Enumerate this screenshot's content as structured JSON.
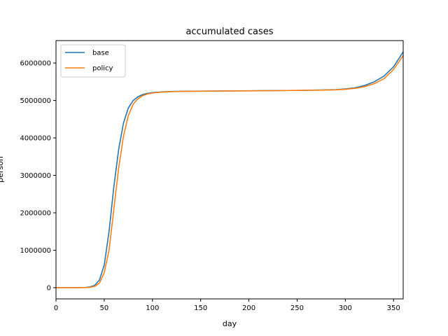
{
  "chart_data": {
    "type": "line",
    "title": "accumulated cases",
    "xlabel": "day",
    "ylabel": "person",
    "xlim": [
      0,
      360
    ],
    "ylim": [
      -300000,
      6600000
    ],
    "xticks": [
      0,
      50,
      100,
      150,
      200,
      250,
      300,
      350
    ],
    "yticks": [
      0,
      1000000,
      2000000,
      3000000,
      4000000,
      5000000,
      6000000
    ],
    "legend_position": "top-left",
    "grid": false,
    "x": [
      0,
      10,
      20,
      30,
      35,
      40,
      45,
      50,
      55,
      60,
      65,
      70,
      75,
      80,
      85,
      90,
      95,
      100,
      110,
      120,
      130,
      150,
      175,
      200,
      225,
      250,
      275,
      290,
      300,
      310,
      320,
      330,
      340,
      350,
      360
    ],
    "series": [
      {
        "name": "base",
        "color": "#1f77b4",
        "values": [
          0,
          0,
          0,
          5000,
          20000,
          60000,
          200000,
          600000,
          1500000,
          2700000,
          3700000,
          4400000,
          4800000,
          5000000,
          5100000,
          5160000,
          5190000,
          5210000,
          5230000,
          5240000,
          5245000,
          5250000,
          5255000,
          5260000,
          5265000,
          5270000,
          5280000,
          5290000,
          5310000,
          5340000,
          5400000,
          5500000,
          5650000,
          5900000,
          6300000
        ]
      },
      {
        "name": "policy",
        "color": "#ff7f0e",
        "values": [
          0,
          0,
          0,
          3000,
          10000,
          35000,
          120000,
          400000,
          1000000,
          2100000,
          3200000,
          4050000,
          4600000,
          4900000,
          5050000,
          5130000,
          5175000,
          5200000,
          5225000,
          5235000,
          5242000,
          5248000,
          5253000,
          5258000,
          5263000,
          5268000,
          5275000,
          5285000,
          5300000,
          5325000,
          5370000,
          5450000,
          5580000,
          5830000,
          6200000
        ]
      }
    ]
  }
}
